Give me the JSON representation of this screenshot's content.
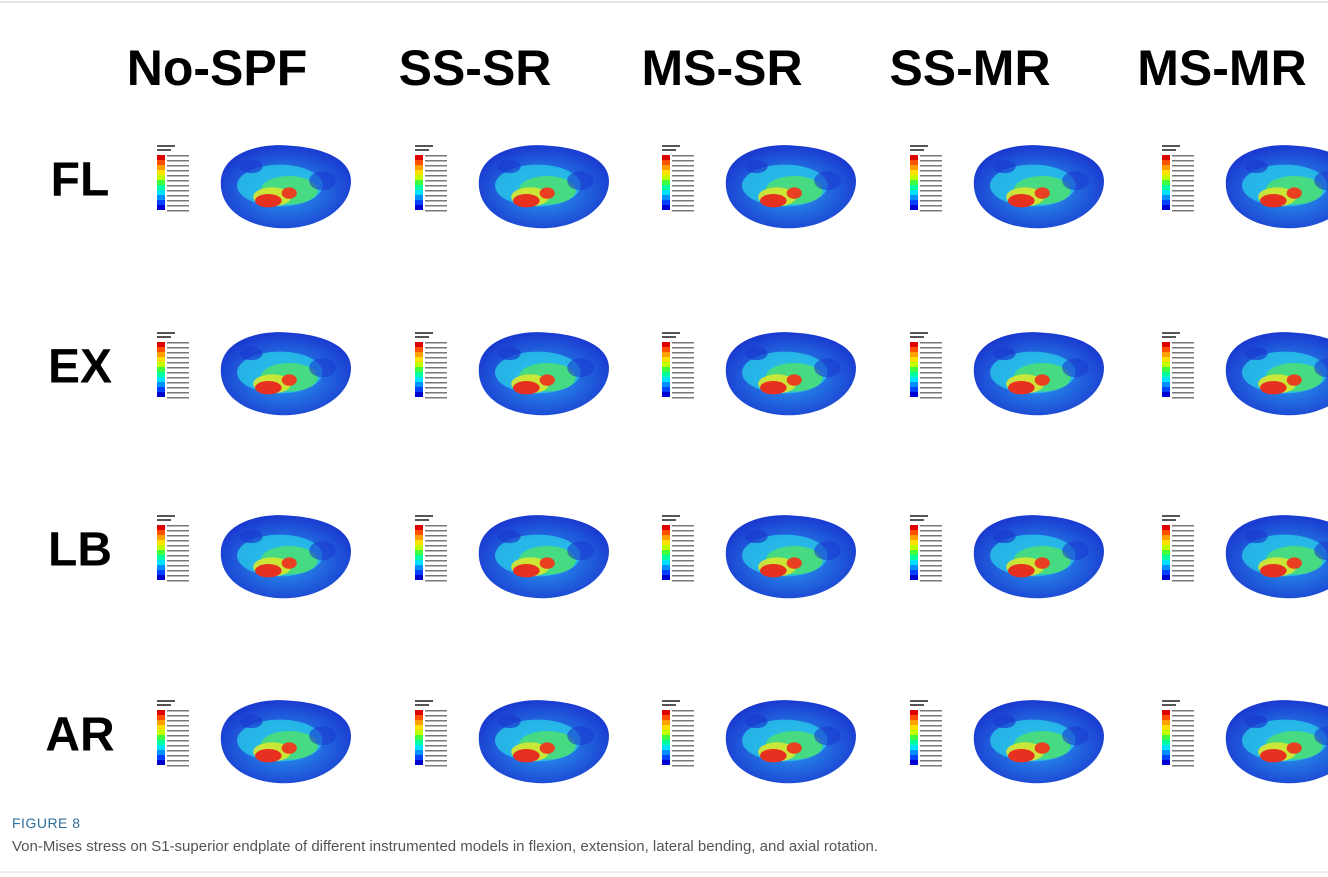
{
  "figure": {
    "columns": [
      "No-SPF",
      "SS-SR",
      "MS-SR",
      "SS-MR",
      "MS-MR"
    ],
    "rows": [
      "FL",
      "EX",
      "LB",
      "AR"
    ],
    "label": "FIGURE 8",
    "caption": "Von-Mises stress on S1-superior endplate of different instrumented models in flexion, extension, lateral bending, and axial rotation."
  }
}
